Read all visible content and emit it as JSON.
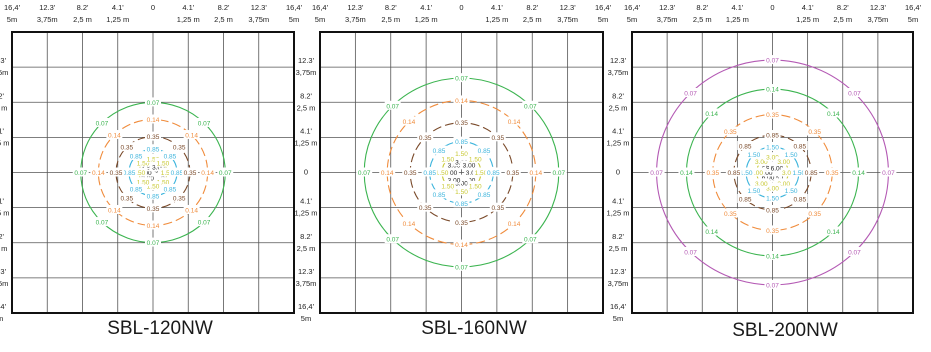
{
  "top_tick_labels": [
    {
      "ft": "16,4'",
      "m": "5m"
    },
    {
      "ft": "12.3'",
      "m": "3,75m"
    },
    {
      "ft": "8.2'",
      "m": "2,5 m"
    },
    {
      "ft": "4.1'",
      "m": "1,25 m"
    },
    {
      "ft": "0",
      "m": ""
    },
    {
      "ft": "4.1'",
      "m": "1,25 m"
    },
    {
      "ft": "8.2'",
      "m": "2,5 m"
    },
    {
      "ft": "12.3'",
      "m": "3,75m"
    },
    {
      "ft": "16,4'",
      "m": "5m"
    }
  ],
  "side_tick_labels": [
    {
      "ft": "12.3'",
      "m": "3,75m"
    },
    {
      "ft": "8.2'",
      "m": "2,5 m"
    },
    {
      "ft": "4.1'",
      "m": "1,25 m"
    },
    {
      "ft": "0",
      "m": ""
    },
    {
      "ft": "4.1'",
      "m": "1,25 m"
    },
    {
      "ft": "8.2'",
      "m": "2,5 m"
    },
    {
      "ft": "12.3'",
      "m": "3,75m"
    },
    {
      "ft": "16,4'",
      "m": "5m"
    }
  ],
  "colors": {
    "3.00": "#222222",
    "1.50": "#c8c832",
    "0.85": "#3cb4dc",
    "0.35": "#7a4a2a",
    "0.14": "#f08c3c",
    "0.07": "#3cb450",
    "0.07-outer": "#b45ab4",
    "grid": "#333333"
  },
  "panels": [
    {
      "title": "SBL-120NW",
      "contours": [
        {
          "label": "3.00",
          "color": "3.00",
          "r": 0.22,
          "dashed": true
        },
        {
          "label": "1.50",
          "color": "1.50",
          "r": 0.4,
          "dashed": false
        },
        {
          "label": "0.85",
          "color": "0.85",
          "r": 0.68,
          "dashed": false
        },
        {
          "label": "0.35",
          "color": "0.35",
          "r": 1.05,
          "dashed": true
        },
        {
          "label": "0.14",
          "color": "0.14",
          "r": 1.55,
          "dashed": true
        },
        {
          "label": "0.07",
          "color": "0.07",
          "r": 2.05,
          "dashed": false
        }
      ]
    },
    {
      "title": "SBL-160NW",
      "contours": [
        {
          "label": "3.00",
          "color": "3.00",
          "r": 0.3,
          "dashed": true
        },
        {
          "label": "1.50",
          "color": "1.50",
          "r": 0.55,
          "dashed": false
        },
        {
          "label": "0.85",
          "color": "0.85",
          "r": 0.9,
          "dashed": true
        },
        {
          "label": "0.35",
          "color": "0.35",
          "r": 1.45,
          "dashed": true
        },
        {
          "label": "0.14",
          "color": "0.14",
          "r": 2.1,
          "dashed": true
        },
        {
          "label": "0.07",
          "color": "0.07",
          "r": 2.75,
          "dashed": false
        }
      ]
    },
    {
      "title": "SBL-200NW",
      "contours": [
        {
          "label": "6.00",
          "color": "3.00",
          "r": 0.18,
          "dashed": false
        },
        {
          "label": "3.00",
          "color": "1.50",
          "r": 0.45,
          "dashed": false
        },
        {
          "label": "1.50",
          "color": "0.85",
          "r": 0.75,
          "dashed": false
        },
        {
          "label": "0.85",
          "color": "0.35",
          "r": 1.1,
          "dashed": true
        },
        {
          "label": "0.35",
          "color": "0.14",
          "r": 1.7,
          "dashed": true
        },
        {
          "label": "0.14",
          "color": "0.07",
          "r": 2.45,
          "dashed": false
        },
        {
          "label": "0.07",
          "color": "0.07-outer",
          "r": 3.3,
          "dashed": false
        }
      ]
    }
  ]
}
